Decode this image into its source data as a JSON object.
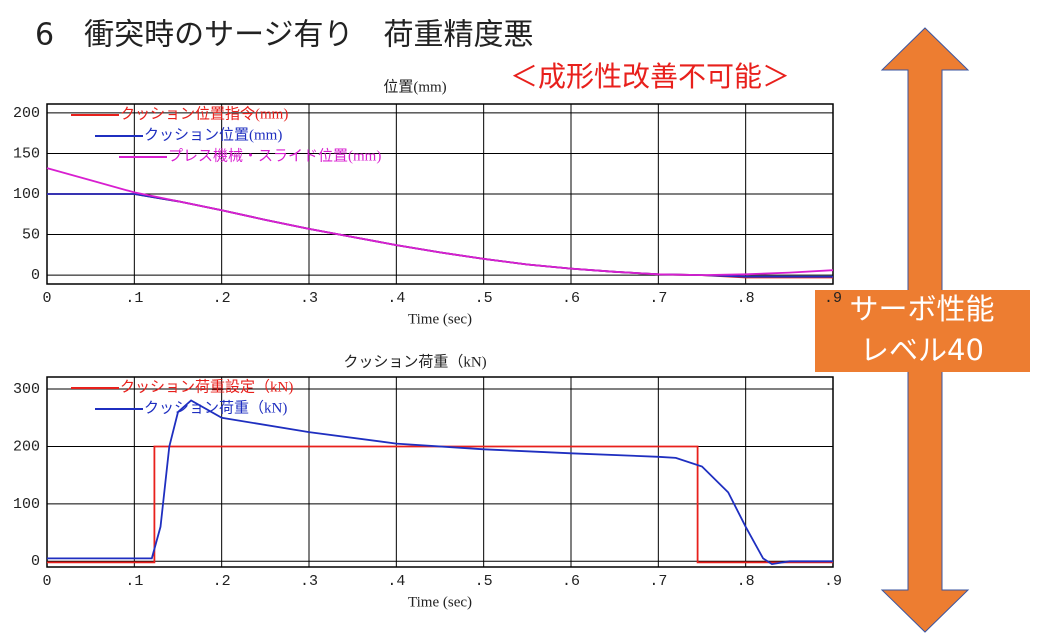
{
  "header": {
    "title": "6　衝突時のサージ有り　荷重精度悪",
    "note": "＜成形性改善不可能＞"
  },
  "badge": {
    "lines": [
      "サーボ性能",
      "レベル40"
    ]
  },
  "chart_data": [
    {
      "type": "line",
      "title": "位置(mm)",
      "xlabel": "Time (sec)",
      "xlim": [
        0,
        0.9
      ],
      "ylim": [
        -11,
        211
      ],
      "xticks": [
        0,
        {
          "value": 0.1,
          "label": ".1"
        },
        {
          "value": 0.2,
          "label": ".2"
        },
        {
          "value": 0.3,
          "label": ".3"
        },
        {
          "value": 0.4,
          "label": ".4"
        },
        {
          "value": 0.5,
          "label": ".5"
        },
        {
          "value": 0.6,
          "label": ".6"
        },
        {
          "value": 0.7,
          "label": ".7"
        },
        {
          "value": 0.8,
          "label": ".8"
        },
        {
          "value": 0.9,
          "label": ".9"
        }
      ],
      "yticks": [
        0,
        50,
        100,
        150,
        200
      ],
      "grid": true,
      "legend": "upper left",
      "series": [
        {
          "name": "クッション位置指令(mm)",
          "color": "#e8201c",
          "x": [
            0,
            0.05,
            0.1,
            0.15,
            0.2,
            0.25,
            0.3,
            0.35,
            0.4,
            0.45,
            0.5,
            0.55,
            0.6,
            0.65,
            0.7,
            0.75,
            0.8,
            0.85,
            0.9
          ],
          "values": [
            100,
            100,
            100,
            91,
            80,
            68,
            57,
            47,
            37,
            28,
            20,
            13,
            8,
            4,
            1,
            0,
            -3,
            -3,
            -3
          ]
        },
        {
          "name": "クッション位置(mm)",
          "color": "#1f2fc0",
          "x": [
            0,
            0.05,
            0.1,
            0.15,
            0.2,
            0.25,
            0.3,
            0.35,
            0.4,
            0.45,
            0.5,
            0.55,
            0.6,
            0.65,
            0.7,
            0.75,
            0.8,
            0.85,
            0.9
          ],
          "values": [
            100,
            100,
            100,
            91,
            80,
            68,
            57,
            47,
            37,
            28,
            20,
            13,
            8,
            4,
            1,
            0,
            -2,
            -2,
            -2
          ]
        },
        {
          "name": "プレス機械・スライド位置(mm)",
          "color": "#d81fd0",
          "x": [
            0,
            0.05,
            0.1,
            0.15,
            0.2,
            0.25,
            0.3,
            0.35,
            0.4,
            0.45,
            0.5,
            0.55,
            0.6,
            0.65,
            0.7,
            0.75,
            0.8,
            0.85,
            0.9
          ],
          "values": [
            132,
            117,
            102,
            91,
            80,
            68,
            57,
            47,
            37,
            28,
            20,
            13,
            8,
            4,
            1,
            0,
            1,
            3,
            6
          ]
        }
      ]
    },
    {
      "type": "line",
      "title": "クッション荷重（kN)",
      "xlabel": "Time (sec)",
      "xlim": [
        0,
        0.9
      ],
      "ylim": [
        -10,
        321
      ],
      "xticks": [
        0,
        {
          "value": 0.1,
          "label": ".1"
        },
        {
          "value": 0.2,
          "label": ".2"
        },
        {
          "value": 0.3,
          "label": ".3"
        },
        {
          "value": 0.4,
          "label": ".4"
        },
        {
          "value": 0.5,
          "label": ".5"
        },
        {
          "value": 0.6,
          "label": ".6"
        },
        {
          "value": 0.7,
          "label": ".7"
        },
        {
          "value": 0.8,
          "label": ".8"
        },
        {
          "value": 0.9,
          "label": ".9"
        }
      ],
      "yticks": [
        0,
        100,
        200,
        300
      ],
      "grid": true,
      "legend": "upper left",
      "series": [
        {
          "name": "クッション荷重設定（kN)",
          "color": "#e8201c",
          "x": [
            0,
            0.123,
            0.123,
            0.745,
            0.745,
            0.9
          ],
          "values": [
            -2,
            -2,
            200,
            200,
            -2,
            -2
          ]
        },
        {
          "name": "クッション荷重（kN)",
          "color": "#1f2fc0",
          "x": [
            0,
            0.12,
            0.13,
            0.14,
            0.15,
            0.165,
            0.2,
            0.3,
            0.4,
            0.5,
            0.6,
            0.7,
            0.72,
            0.75,
            0.78,
            0.8,
            0.82,
            0.83,
            0.85,
            0.9
          ],
          "values": [
            5,
            5,
            60,
            200,
            260,
            280,
            250,
            225,
            205,
            195,
            188,
            182,
            180,
            165,
            120,
            60,
            5,
            -5,
            0,
            0
          ]
        }
      ]
    }
  ]
}
